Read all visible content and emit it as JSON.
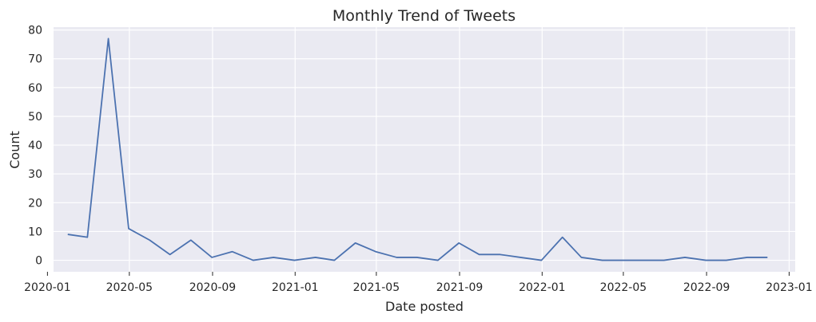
{
  "chart_data": {
    "type": "line",
    "title": "Monthly Trend of Tweets",
    "xlabel": "Date posted",
    "ylabel": "Count",
    "background_color": "#eaeaf2",
    "grid": true,
    "grid_color": "#ffffff",
    "line_color": "#4c72b0",
    "x_axis_type": "date",
    "xlim": [
      "2020-01-10",
      "2023-01-10"
    ],
    "ylim": [
      -4,
      81
    ],
    "x_ticks": [
      "2020-01",
      "2020-05",
      "2020-09",
      "2021-01",
      "2021-05",
      "2021-09",
      "2022-01",
      "2022-05",
      "2022-09",
      "2023-01"
    ],
    "y_ticks": [
      0,
      10,
      20,
      30,
      40,
      50,
      60,
      70,
      80
    ],
    "series": [
      {
        "name": "",
        "x": [
          "2020-01-31",
          "2020-02-29",
          "2020-03-31",
          "2020-04-30",
          "2020-05-31",
          "2020-06-30",
          "2020-07-31",
          "2020-08-31",
          "2020-09-30",
          "2020-10-31",
          "2020-11-30",
          "2020-12-31",
          "2021-01-31",
          "2021-02-28",
          "2021-03-31",
          "2021-04-30",
          "2021-05-31",
          "2021-06-30",
          "2021-07-31",
          "2021-08-31",
          "2021-09-30",
          "2021-10-31",
          "2021-11-30",
          "2021-12-31",
          "2022-01-31",
          "2022-02-28",
          "2022-03-31",
          "2022-04-30",
          "2022-05-31",
          "2022-06-30",
          "2022-07-31",
          "2022-08-31",
          "2022-09-30",
          "2022-10-31",
          "2022-11-30"
        ],
        "values": [
          9,
          8,
          77,
          11,
          7,
          2,
          7,
          1,
          3,
          0,
          1,
          0,
          1,
          0,
          6,
          3,
          1,
          1,
          0,
          6,
          2,
          2,
          1,
          0,
          8,
          1,
          0,
          0,
          0,
          0,
          1,
          0,
          0,
          1,
          1
        ]
      }
    ]
  }
}
